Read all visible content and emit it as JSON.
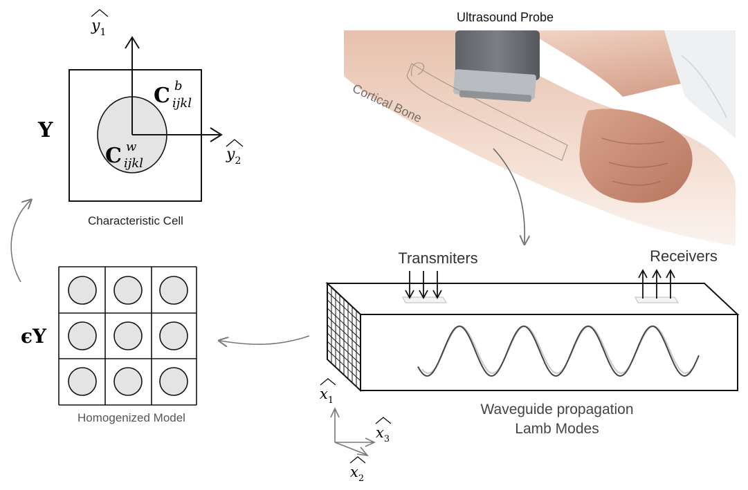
{
  "labels": {
    "ultrasound_probe": "Ultrasound Probe",
    "cortical_bone": "Cortical Bone",
    "characteristic_cell": "Characteristic Cell",
    "homogenized_model": "Homogenized Model",
    "transmiters": "Transmiters",
    "receivers": "Receivers",
    "waveguide_line1": "Waveguide propagation",
    "waveguide_line2": "Lamb Modes"
  },
  "math": {
    "Y": "Y",
    "epsilon_Y": "ϵY",
    "C": "C",
    "C_b_super": "b",
    "C_w_super": "w",
    "C_sub": "ijkl",
    "y1_var": "y",
    "y1_sub": "1",
    "y2_var": "y",
    "y2_sub": "2",
    "x1_var": "x",
    "x1_sub": "1",
    "x2_var": "x",
    "x2_sub": "2",
    "x3_var": "x",
    "x3_sub": "3"
  },
  "colors": {
    "line": "#111111",
    "inclusion_fill": "#e4e4e4",
    "gray_arrow": "#777777",
    "faint_wave": "#c8c8c8",
    "main_wave": "#444444",
    "skin_light": "#f3ddd0",
    "skin_mid": "#e2b7a2",
    "skin_dark": "#c98c73",
    "probe_dark": "#6f7379",
    "probe_light": "#b9bcc0"
  },
  "icons": {
    "probe": "ultrasound-probe-icon",
    "arm": "arm-photo-icon"
  }
}
